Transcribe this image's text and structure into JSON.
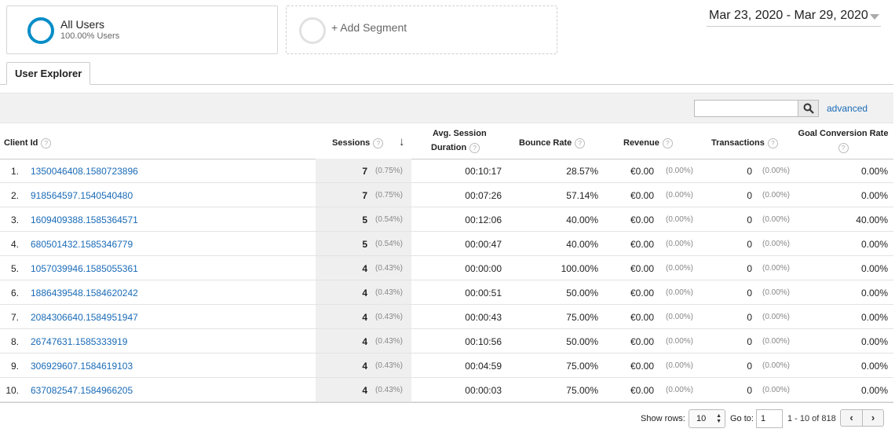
{
  "segments": {
    "all_users": {
      "title": "All Users",
      "subtitle": "100.00% Users"
    },
    "add_segment": {
      "label": "+ Add Segment"
    }
  },
  "date_range": "Mar 23, 2020 - Mar 29, 2020",
  "tabs": [
    {
      "label": "User Explorer",
      "active": true
    }
  ],
  "search": {
    "value": "",
    "advanced_label": "advanced"
  },
  "table": {
    "headers": {
      "client_id": "Client Id",
      "sessions": "Sessions",
      "avg_session_duration_1": "Avg. Session",
      "avg_session_duration_2": "Duration",
      "bounce_rate": "Bounce Rate",
      "revenue": "Revenue",
      "transactions": "Transactions",
      "goal_conversion_rate": "Goal Conversion Rate"
    },
    "help_glyph": "?",
    "sort_glyph": "↓",
    "rows": [
      {
        "idx": "1.",
        "client_id": "1350046408.1580723896",
        "sessions": "7",
        "sessions_pct": "(0.75%)",
        "duration": "00:10:17",
        "bounce": "28.57%",
        "revenue": "€0.00",
        "revenue_pct": "(0.00%)",
        "transactions": "0",
        "transactions_pct": "(0.00%)",
        "goal": "0.00%"
      },
      {
        "idx": "2.",
        "client_id": "918564597.1540540480",
        "sessions": "7",
        "sessions_pct": "(0.75%)",
        "duration": "00:07:26",
        "bounce": "57.14%",
        "revenue": "€0.00",
        "revenue_pct": "(0.00%)",
        "transactions": "0",
        "transactions_pct": "(0.00%)",
        "goal": "0.00%"
      },
      {
        "idx": "3.",
        "client_id": "1609409388.1585364571",
        "sessions": "5",
        "sessions_pct": "(0.54%)",
        "duration": "00:12:06",
        "bounce": "40.00%",
        "revenue": "€0.00",
        "revenue_pct": "(0.00%)",
        "transactions": "0",
        "transactions_pct": "(0.00%)",
        "goal": "40.00%"
      },
      {
        "idx": "4.",
        "client_id": "680501432.1585346779",
        "sessions": "5",
        "sessions_pct": "(0.54%)",
        "duration": "00:00:47",
        "bounce": "40.00%",
        "revenue": "€0.00",
        "revenue_pct": "(0.00%)",
        "transactions": "0",
        "transactions_pct": "(0.00%)",
        "goal": "0.00%"
      },
      {
        "idx": "5.",
        "client_id": "1057039946.1585055361",
        "sessions": "4",
        "sessions_pct": "(0.43%)",
        "duration": "00:00:00",
        "bounce": "100.00%",
        "revenue": "€0.00",
        "revenue_pct": "(0.00%)",
        "transactions": "0",
        "transactions_pct": "(0.00%)",
        "goal": "0.00%"
      },
      {
        "idx": "6.",
        "client_id": "1886439548.1584620242",
        "sessions": "4",
        "sessions_pct": "(0.43%)",
        "duration": "00:00:51",
        "bounce": "50.00%",
        "revenue": "€0.00",
        "revenue_pct": "(0.00%)",
        "transactions": "0",
        "transactions_pct": "(0.00%)",
        "goal": "0.00%"
      },
      {
        "idx": "7.",
        "client_id": "2084306640.1584951947",
        "sessions": "4",
        "sessions_pct": "(0.43%)",
        "duration": "00:00:43",
        "bounce": "75.00%",
        "revenue": "€0.00",
        "revenue_pct": "(0.00%)",
        "transactions": "0",
        "transactions_pct": "(0.00%)",
        "goal": "0.00%"
      },
      {
        "idx": "8.",
        "client_id": "26747631.1585333919",
        "sessions": "4",
        "sessions_pct": "(0.43%)",
        "duration": "00:10:56",
        "bounce": "50.00%",
        "revenue": "€0.00",
        "revenue_pct": "(0.00%)",
        "transactions": "0",
        "transactions_pct": "(0.00%)",
        "goal": "0.00%"
      },
      {
        "idx": "9.",
        "client_id": "306929607.1584619103",
        "sessions": "4",
        "sessions_pct": "(0.43%)",
        "duration": "00:04:59",
        "bounce": "75.00%",
        "revenue": "€0.00",
        "revenue_pct": "(0.00%)",
        "transactions": "0",
        "transactions_pct": "(0.00%)",
        "goal": "0.00%"
      },
      {
        "idx": "10.",
        "client_id": "637082547.1584966205",
        "sessions": "4",
        "sessions_pct": "(0.43%)",
        "duration": "00:00:03",
        "bounce": "75.00%",
        "revenue": "€0.00",
        "revenue_pct": "(0.00%)",
        "transactions": "0",
        "transactions_pct": "(0.00%)",
        "goal": "0.00%"
      }
    ]
  },
  "footer": {
    "show_rows_label": "Show rows:",
    "show_rows_value": "10",
    "goto_label": "Go to:",
    "goto_value": "1",
    "range_text": "1 - 10 of 818",
    "prev_glyph": "‹",
    "next_glyph": "›"
  },
  "colors": {
    "accent": "#058dc7",
    "link": "#1a6bb7"
  }
}
